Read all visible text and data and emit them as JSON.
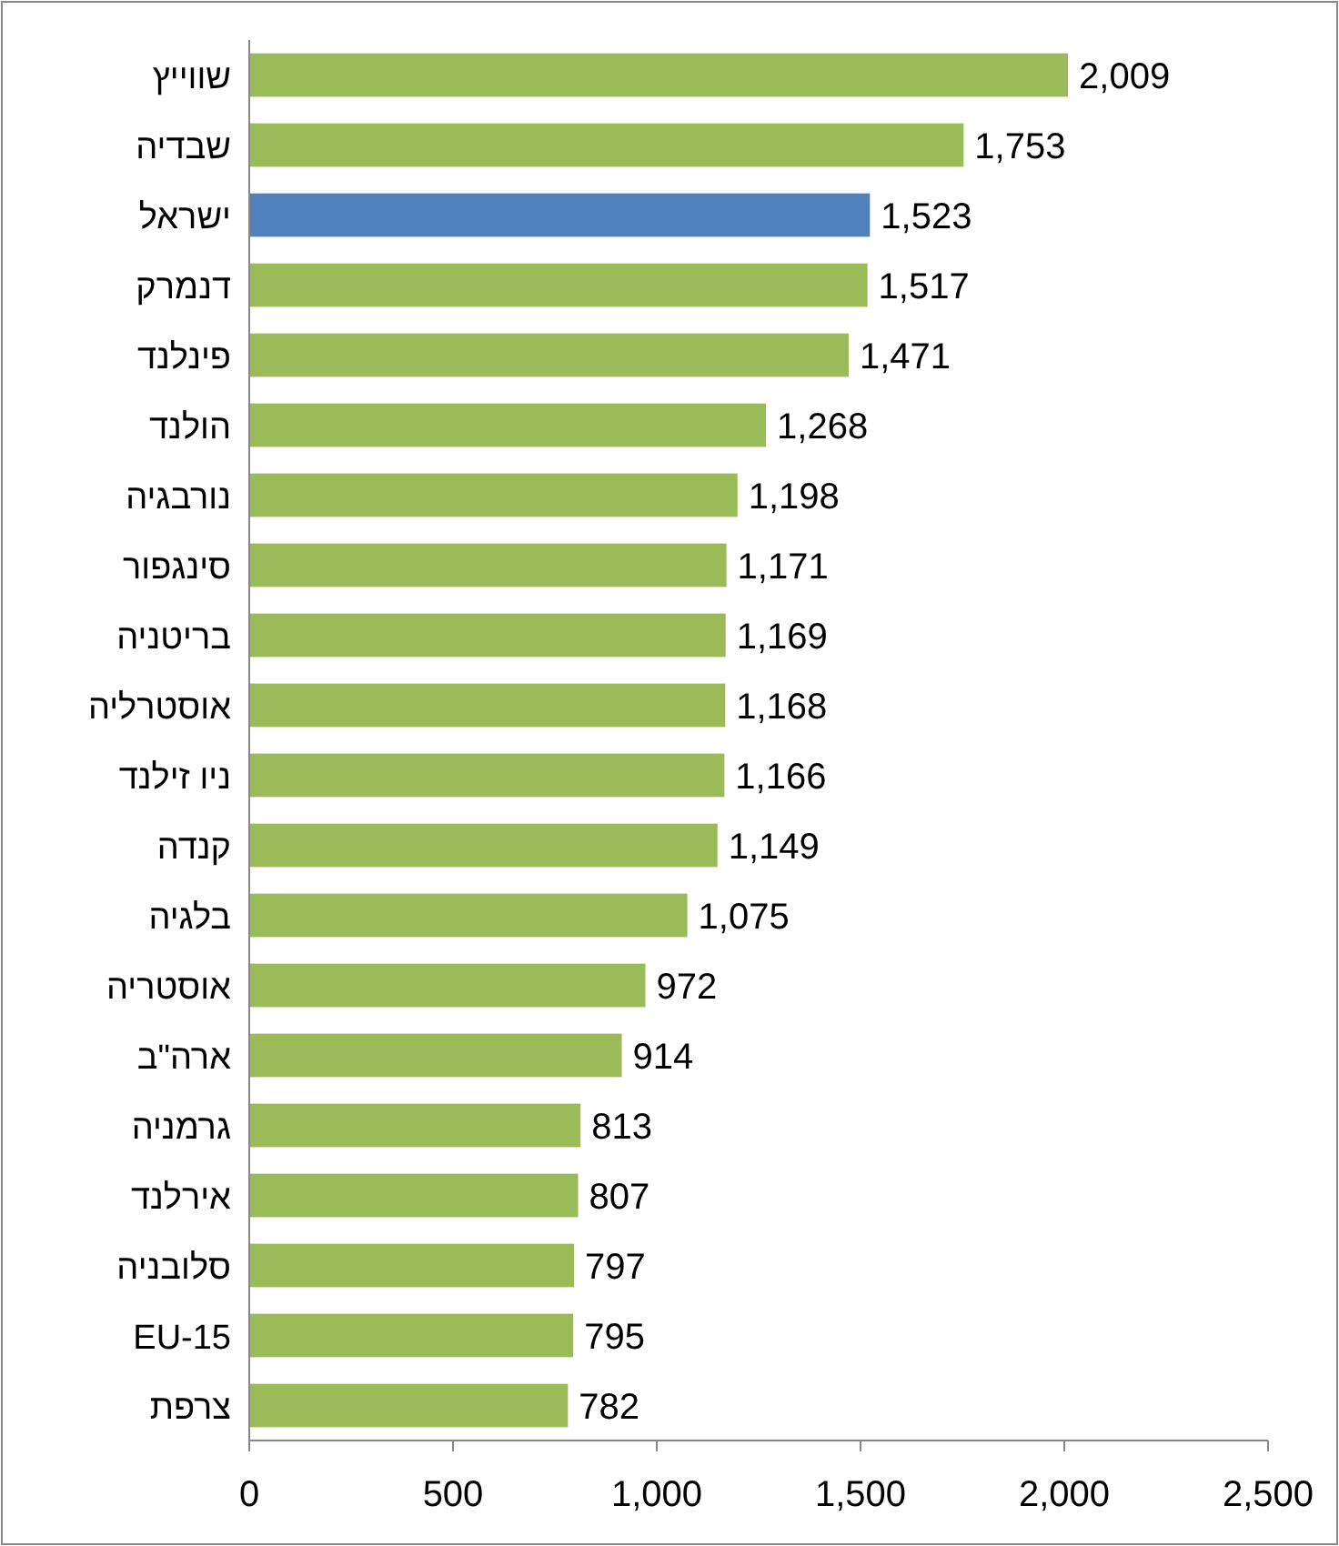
{
  "chart_data": {
    "type": "bar",
    "orientation": "horizontal",
    "categories": [
      "שווייץ",
      "שבדיה",
      "ישראל",
      "דנמרק",
      "פינלנד",
      "הולנד",
      "נורבגיה",
      "סינגפור",
      "בריטניה",
      "אוסטרליה",
      "ניו זילנד",
      "קנדה",
      "בלגיה",
      "אוסטריה",
      "ארה\"ב",
      "גרמניה",
      "אירלנד",
      "סלובניה",
      "EU-15",
      "צרפת"
    ],
    "values": [
      2009,
      1753,
      1523,
      1517,
      1471,
      1268,
      1198,
      1171,
      1169,
      1168,
      1166,
      1149,
      1075,
      972,
      914,
      813,
      807,
      797,
      795,
      782
    ],
    "colors": [
      "#9bbb59",
      "#9bbb59",
      "#4f81bd",
      "#9bbb59",
      "#9bbb59",
      "#9bbb59",
      "#9bbb59",
      "#9bbb59",
      "#9bbb59",
      "#9bbb59",
      "#9bbb59",
      "#9bbb59",
      "#9bbb59",
      "#9bbb59",
      "#9bbb59",
      "#9bbb59",
      "#9bbb59",
      "#9bbb59",
      "#9bbb59",
      "#9bbb59"
    ],
    "value_labels": [
      "2,009",
      "1,753",
      "1,523",
      "1,517",
      "1,471",
      "1,268",
      "1,198",
      "1,171",
      "1,169",
      "1,168",
      "1,166",
      "1,149",
      "1,075",
      "972",
      "914",
      "813",
      "807",
      "797",
      "795",
      "782"
    ],
    "xlim": [
      0,
      2500
    ],
    "xticks": [
      {
        "value": 0,
        "label": "0"
      },
      {
        "value": 500,
        "label": "500"
      },
      {
        "value": 1000,
        "label": "1,000"
      },
      {
        "value": 1500,
        "label": "1,500"
      },
      {
        "value": 2000,
        "label": "2,000"
      },
      {
        "value": 2500,
        "label": "2,500"
      }
    ],
    "grid": false
  }
}
